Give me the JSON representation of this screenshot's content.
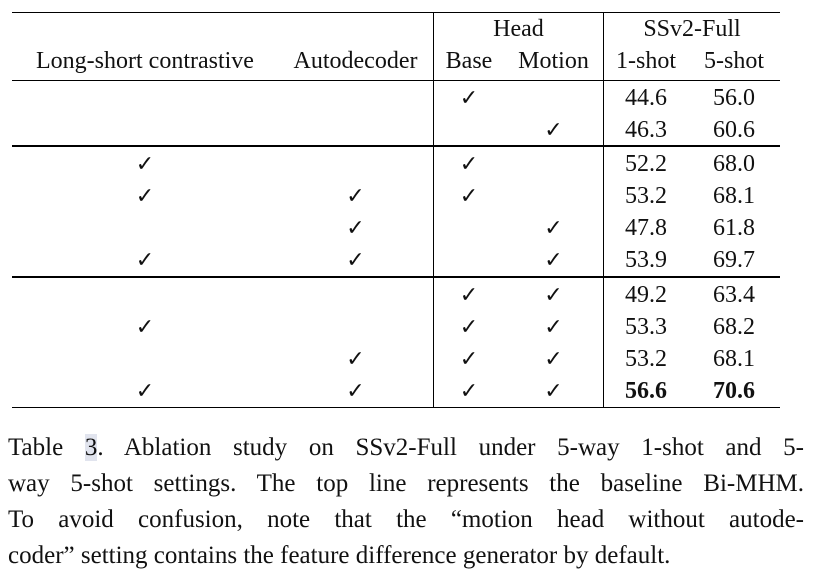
{
  "table": {
    "group_headers": {
      "head": "Head",
      "dataset": "SSv2-Full"
    },
    "columns": [
      "Long-short contrastive",
      "Autodecoder",
      "Base",
      "Motion",
      "1-shot",
      "5-shot"
    ],
    "check_mark": "✓",
    "groups": [
      [
        {
          "lsc": false,
          "ad": false,
          "base": true,
          "motion": false,
          "s1": "44.6",
          "s5": "56.0",
          "bold": false
        },
        {
          "lsc": false,
          "ad": false,
          "base": false,
          "motion": true,
          "s1": "46.3",
          "s5": "60.6",
          "bold": false
        }
      ],
      [
        {
          "lsc": true,
          "ad": false,
          "base": true,
          "motion": false,
          "s1": "52.2",
          "s5": "68.0",
          "bold": false
        },
        {
          "lsc": true,
          "ad": true,
          "base": true,
          "motion": false,
          "s1": "53.2",
          "s5": "68.1",
          "bold": false
        },
        {
          "lsc": false,
          "ad": true,
          "base": false,
          "motion": true,
          "s1": "47.8",
          "s5": "61.8",
          "bold": false
        },
        {
          "lsc": true,
          "ad": true,
          "base": false,
          "motion": true,
          "s1": "53.9",
          "s5": "69.7",
          "bold": false
        }
      ],
      [
        {
          "lsc": false,
          "ad": false,
          "base": true,
          "motion": true,
          "s1": "49.2",
          "s5": "63.4",
          "bold": false
        },
        {
          "lsc": true,
          "ad": false,
          "base": true,
          "motion": true,
          "s1": "53.3",
          "s5": "68.2",
          "bold": false
        },
        {
          "lsc": false,
          "ad": true,
          "base": true,
          "motion": true,
          "s1": "53.2",
          "s5": "68.1",
          "bold": false
        },
        {
          "lsc": true,
          "ad": true,
          "base": true,
          "motion": true,
          "s1": "56.6",
          "s5": "70.6",
          "bold": true
        }
      ]
    ]
  },
  "caption": {
    "prefix": "Table ",
    "ref": "3",
    "lines": [
      ". Ablation study on SSv2-Full under 5-way 1-shot and 5-",
      "way 5-shot settings. The top line represents the baseline Bi-MHM.",
      "To avoid confusion, note that the “motion head without autode-",
      "coder” setting contains the feature difference generator by default."
    ]
  }
}
